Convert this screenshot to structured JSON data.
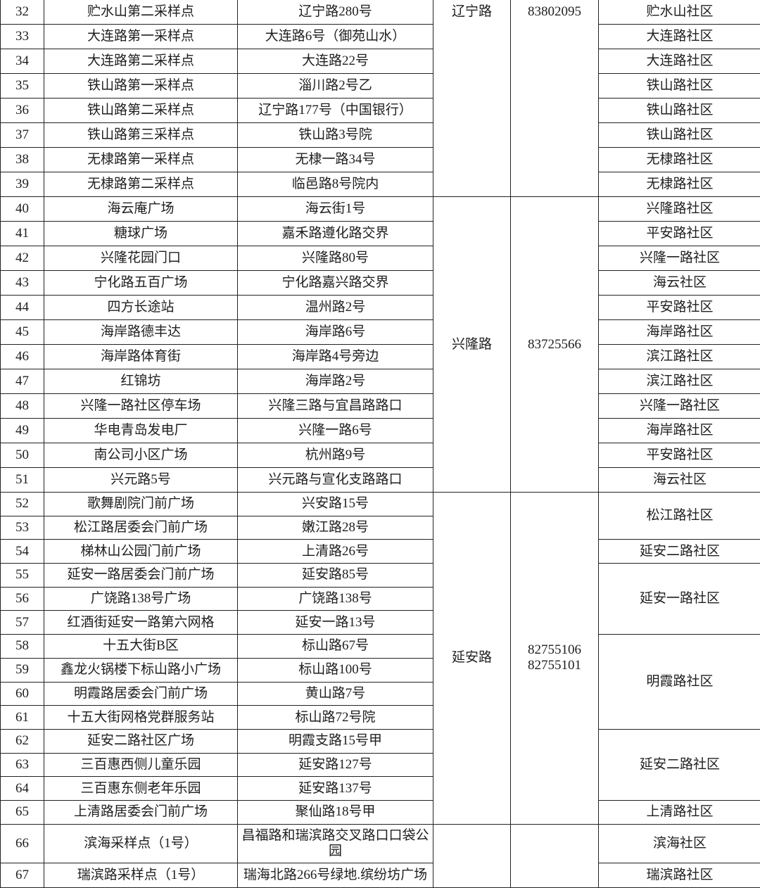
{
  "groups": [
    {
      "district": "辽宁路",
      "phones": [
        "83802095"
      ],
      "rows": [
        {
          "no": "32",
          "site": "贮水山第二采样点",
          "address": "辽宁路280号"
        },
        {
          "no": "33",
          "site": "大连路第一采样点",
          "address": "大连路6号（御苑山水）"
        },
        {
          "no": "34",
          "site": "大连路第二采样点",
          "address": "大连路22号"
        },
        {
          "no": "35",
          "site": "铁山路第一采样点",
          "address": "淄川路2号乙"
        },
        {
          "no": "36",
          "site": "铁山路第二采样点",
          "address": "辽宁路177号（中国银行）"
        },
        {
          "no": "37",
          "site": "铁山路第三采样点",
          "address": "铁山路3号院"
        },
        {
          "no": "38",
          "site": "无棣路第一采样点",
          "address": "无棣一路34号"
        },
        {
          "no": "39",
          "site": "无棣路第二采样点",
          "address": "临邑路8号院内"
        }
      ],
      "communities": [
        {
          "name": "贮水山社区",
          "span": 1
        },
        {
          "name": "大连路社区",
          "span": 1
        },
        {
          "name": "大连路社区",
          "span": 1
        },
        {
          "name": "铁山路社区",
          "span": 1
        },
        {
          "name": "铁山路社区",
          "span": 1
        },
        {
          "name": "铁山路社区",
          "span": 1
        },
        {
          "name": "无棣路社区",
          "span": 1
        },
        {
          "name": "无棣路社区",
          "span": 1
        }
      ]
    },
    {
      "district": "兴隆路",
      "phones": [
        "83725566"
      ],
      "rows": [
        {
          "no": "40",
          "site": "海云庵广场",
          "address": "海云街1号"
        },
        {
          "no": "41",
          "site": "糖球广场",
          "address": "嘉禾路遵化路交界"
        },
        {
          "no": "42",
          "site": "兴隆花园门口",
          "address": "兴隆路80号"
        },
        {
          "no": "43",
          "site": "宁化路五百广场",
          "address": "宁化路嘉兴路交界"
        },
        {
          "no": "44",
          "site": "四方长途站",
          "address": "温州路2号"
        },
        {
          "no": "45",
          "site": "海岸路德丰达",
          "address": "海岸路6号"
        },
        {
          "no": "46",
          "site": "海岸路体育街",
          "address": "海岸路4号旁边"
        },
        {
          "no": "47",
          "site": "红锦坊",
          "address": "海岸路2号"
        },
        {
          "no": "48",
          "site": "兴隆一路社区停车场",
          "address": "兴隆三路与宜昌路路口"
        },
        {
          "no": "49",
          "site": "华电青岛发电厂",
          "address": "兴隆一路6号"
        },
        {
          "no": "50",
          "site": "南公司小区广场",
          "address": "杭州路9号"
        },
        {
          "no": "51",
          "site": "兴元路5号",
          "address": "兴元路与宣化支路路口"
        }
      ],
      "communities": [
        {
          "name": "兴隆路社区",
          "span": 1
        },
        {
          "name": "平安路社区",
          "span": 1
        },
        {
          "name": "兴隆一路社区",
          "span": 1
        },
        {
          "name": "海云社区",
          "span": 1
        },
        {
          "name": "平安路社区",
          "span": 1
        },
        {
          "name": "海岸路社区",
          "span": 1
        },
        {
          "name": "滨江路社区",
          "span": 1
        },
        {
          "name": "滨江路社区",
          "span": 1
        },
        {
          "name": "兴隆一路社区",
          "span": 1
        },
        {
          "name": "海岸路社区",
          "span": 1
        },
        {
          "name": "平安路社区",
          "span": 1
        },
        {
          "name": "海云社区",
          "span": 1
        }
      ]
    },
    {
      "district": "延安路",
      "phones": [
        "82755106",
        "82755101"
      ],
      "rows": [
        {
          "no": "52",
          "site": "歌舞剧院门前广场",
          "address": "兴安路15号"
        },
        {
          "no": "53",
          "site": "松江路居委会门前广场",
          "address": "嫩江路28号"
        },
        {
          "no": "54",
          "site": "梯林山公园门前广场",
          "address": "上清路26号"
        },
        {
          "no": "55",
          "site": "延安一路居委会门前广场",
          "address": "延安路85号"
        },
        {
          "no": "56",
          "site": "广饶路138号广场",
          "address": "广饶路138号"
        },
        {
          "no": "57",
          "site": "红酒街延安一路第六网格",
          "address": "延安一路13号"
        },
        {
          "no": "58",
          "site": "十五大街B区",
          "address": "标山路67号"
        },
        {
          "no": "59",
          "site": "鑫龙火锅楼下标山路小广场",
          "address": "标山路100号"
        },
        {
          "no": "60",
          "site": "明霞路居委会门前广场",
          "address": "黄山路7号"
        },
        {
          "no": "61",
          "site": "十五大街网格党群服务站",
          "address": "标山路72号院"
        },
        {
          "no": "62",
          "site": "延安二路社区广场",
          "address": "明霞支路15号甲"
        },
        {
          "no": "63",
          "site": "三百惠西侧儿童乐园",
          "address": "延安路127号"
        },
        {
          "no": "64",
          "site": "三百惠东侧老年乐园",
          "address": "延安路137号"
        },
        {
          "no": "65",
          "site": "上清路居委会门前广场",
          "address": "聚仙路18号甲"
        }
      ],
      "communities": [
        {
          "name": "松江路社区",
          "span": 2
        },
        {
          "name": "延安二路社区",
          "span": 1
        },
        {
          "name": "延安一路社区",
          "span": 3
        },
        {
          "name": "明霞路社区",
          "span": 4
        },
        {
          "name": "延安二路社区",
          "span": 3
        },
        {
          "name": "上清路社区",
          "span": 1
        }
      ]
    },
    {
      "district": "",
      "phones": [],
      "rows": [
        {
          "no": "66",
          "site": "滨海采样点（1号）",
          "address": "昌福路和瑞滨路交叉路口口袋公园"
        },
        {
          "no": "67",
          "site": "瑞滨路采样点（1号）",
          "address": "瑞海北路266号绿地.缤纷坊广场"
        }
      ],
      "communities": [
        {
          "name": "滨海社区",
          "span": 1
        },
        {
          "name": "瑞滨路社区",
          "span": 1
        }
      ]
    }
  ]
}
